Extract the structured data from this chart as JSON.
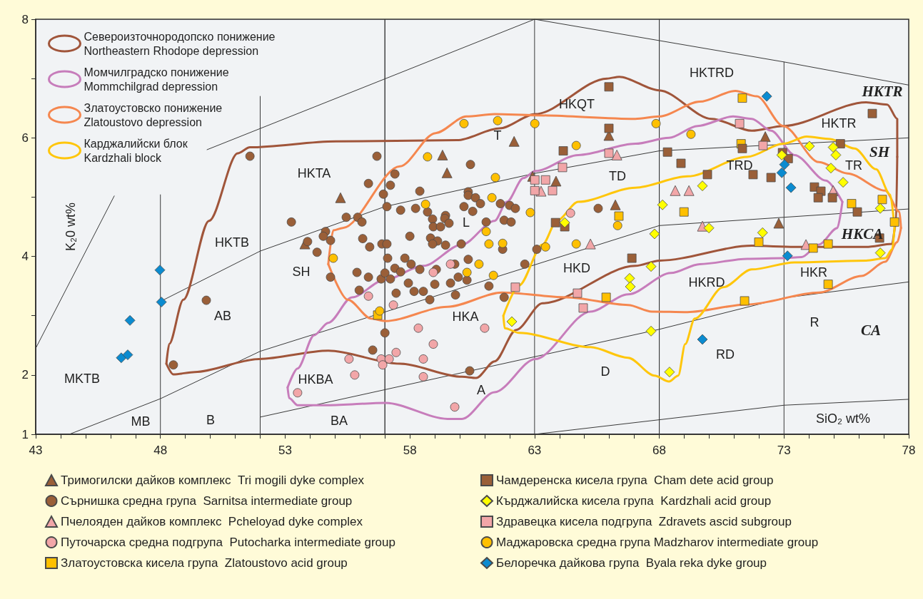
{
  "chart_data": {
    "type": "scatter",
    "xlabel": "SiO₂ wt%",
    "ylabel": "K₂0 wt%",
    "xlim": [
      43,
      78
    ],
    "xticks": [
      43,
      {
        "value": 44,
        "label": null
      },
      {
        "value": 45,
        "label": null
      },
      {
        "value": 46,
        "label": null
      },
      {
        "value": 47,
        "label": null
      },
      48,
      {
        "value": 49,
        "label": null
      },
      {
        "value": 50,
        "label": null
      },
      {
        "value": 51,
        "label": null
      },
      {
        "value": 52,
        "label": null
      },
      53,
      {
        "value": 54,
        "label": null
      },
      {
        "value": 55,
        "label": null
      },
      {
        "value": 56,
        "label": null
      },
      {
        "value": 57,
        "label": null
      },
      58,
      {
        "value": 59,
        "label": null
      },
      {
        "value": 60,
        "label": null
      },
      {
        "value": 61,
        "label": null
      },
      {
        "value": 62,
        "label": null
      },
      63,
      {
        "value": 64,
        "label": null
      },
      {
        "value": 65,
        "label": null
      },
      {
        "value": 66,
        "label": null
      },
      {
        "value": 67,
        "label": null
      },
      68,
      {
        "value": 69,
        "label": null
      },
      {
        "value": 70,
        "label": null
      },
      {
        "value": 71,
        "label": null
      },
      {
        "value": 72,
        "label": null
      },
      73,
      {
        "value": 74,
        "label": null
      },
      {
        "value": 75,
        "label": null
      },
      {
        "value": 76,
        "label": null
      },
      {
        "value": 77,
        "label": null
      },
      78
    ],
    "ylim": [
      1,
      8
    ],
    "yticks": [
      1,
      2,
      {
        "value": 3,
        "label": null
      },
      4,
      {
        "value": 5,
        "label": null
      },
      6,
      {
        "value": 7,
        "label": null
      },
      8
    ],
    "grid": false,
    "legend": "bottom",
    "annotations": [
      "HKTA",
      "T",
      "HKQT",
      "HKTRD",
      "HKTR",
      "HKTR",
      "SH",
      "TR",
      "TRD",
      "TD",
      "HKTB",
      "SH",
      "L",
      "HKCA",
      "HKD",
      "HKRD",
      "HKR",
      "AB",
      "HKA",
      "MKTB",
      "HKBA",
      "A",
      "D",
      "RD",
      "R",
      "CA",
      "MB",
      "B",
      "BA"
    ],
    "series": [
      {
        "type": "line",
        "color": "#3a3a3a",
        "marker": "none",
        "line_style": "solid",
        "x": [
          43,
          46.15
        ],
        "values": [
          2.45,
          5.02
        ]
      },
      {
        "type": "line",
        "color": "#3a3a3a",
        "marker": "none",
        "line_style": "solid",
        "x": [
          49.87,
          63,
          63,
          73,
          78
        ],
        "values": [
          5.8,
          8,
          1,
          1.49,
          1.59
        ]
      },
      {
        "type": "line",
        "color": "#3a3a3a",
        "marker": "none",
        "line_style": "solid",
        "x": [
          63,
          73,
          73
        ],
        "values": [
          8,
          7.28,
          1
        ]
      },
      {
        "type": "line",
        "color": "#3a3a3a",
        "marker": "none",
        "line_style": "solid",
        "x": [
          73,
          78
        ],
        "values": [
          7.28,
          6.89
        ]
      },
      {
        "type": "line",
        "color": "#3a3a3a",
        "marker": "none",
        "line_style": "solid",
        "x": [
          48,
          52,
          57,
          57,
          57,
          57,
          63,
          68,
          78
        ],
        "values": [
          3.24,
          4.09,
          4.84,
          8,
          1,
          4.84,
          5.4,
          5.78,
          6.0
        ]
      },
      {
        "type": "line",
        "color": "#3a3a3a",
        "marker": "none",
        "line_style": "solid",
        "x": [
          44.35,
          48,
          52,
          68,
          68,
          68,
          68,
          78
        ],
        "values": [
          1,
          1.6,
          2.4,
          4.52,
          8,
          1,
          4.52,
          4.8
        ]
      },
      {
        "type": "line",
        "color": "#3a3a3a",
        "marker": "none",
        "line_style": "solid",
        "x": [
          52,
          52,
          52,
          68,
          73,
          78
        ],
        "values": [
          6.7,
          1,
          1.29,
          2.77,
          3.3,
          3.57
        ]
      },
      {
        "type": "line",
        "color": "#3a3a3a",
        "marker": "none",
        "line_style": "solid",
        "x": [
          48,
          48
        ],
        "values": [
          1,
          5.04
        ]
      },
      {
        "type": "line",
        "name": "Североизточнородопско понижение\nNortheastern Rhodope depression",
        "color": "#a0553a",
        "marker": "none",
        "line_style": "solid",
        "x": [
          48.24,
          48.35,
          48.92,
          49.95,
          51.1,
          51.59,
          55.02,
          59.89,
          61.6,
          63.03,
          65.9,
          66.4,
          67.99,
          70.1,
          71.71,
          72.97,
          76.29,
          77.14,
          77.54,
          77.54
        ],
        "values": [
          2.19,
          2.52,
          3.27,
          4.6,
          5.74,
          5.84,
          5.94,
          5.96,
          6.16,
          6.4,
          7.0,
          7.03,
          6.8,
          6.32,
          6.12,
          6.2,
          6.6,
          6.56,
          6.32,
          5.68
        ]
      },
      {
        "type": "line",
        "color": "#a0553a",
        "marker": "none",
        "line_style": "solid",
        "x": [
          48.24,
          48.52,
          49.38,
          51.96,
          54.73,
          57.6,
          60.09,
          60.66,
          61.4,
          62.26,
          63.32,
          67.04,
          68.01,
          71.71,
          73.42,
          76.29,
          77.33,
          77.49,
          77.54
        ],
        "values": [
          2.19,
          2.01,
          2.05,
          2.27,
          2.41,
          2.19,
          1.97,
          1.95,
          2.23,
          2.76,
          3.21,
          3.84,
          3.93,
          4.18,
          4.16,
          4.16,
          4.21,
          4.56,
          5.68
        ]
      },
      {
        "type": "line",
        "name": "Момчилградско понижение\nMommchilgrad depression",
        "color": "#c77dbb",
        "marker": "none",
        "line_style": "solid",
        "x": [
          53.1,
          53.5,
          54.16,
          54.73,
          55.68,
          56.97,
          58.54,
          60.09,
          61.4,
          61.89,
          62.55,
          63.03,
          64.75,
          67.04,
          68.39,
          69.53,
          70.96,
          71.71,
          72.48,
          73.42,
          74.68,
          75.34
        ],
        "values": [
          1.79,
          2.11,
          2.67,
          2.88,
          3.31,
          3.6,
          3.84,
          4.2,
          4.6,
          4.92,
          5.32,
          5.44,
          5.71,
          5.9,
          6.0,
          6.2,
          6.36,
          6.32,
          6.12,
          5.71,
          5.28,
          4.92
        ]
      },
      {
        "type": "line",
        "color": "#c77dbb",
        "marker": "none",
        "line_style": "solid",
        "x": [
          53.1,
          53.16,
          53.5,
          54.73,
          57.02,
          59.51,
          60.09,
          61.4,
          63.03,
          65.24,
          66.75,
          68.47,
          69.62,
          71.53,
          72.97,
          73.71,
          74.4,
          75.14,
          75.34
        ],
        "values": [
          1.79,
          1.61,
          1.49,
          1.49,
          1.53,
          1.26,
          1.26,
          1.71,
          2.27,
          3.07,
          3.36,
          3.72,
          3.87,
          3.96,
          3.97,
          3.99,
          4.2,
          4.48,
          4.92
        ]
      },
      {
        "type": "line",
        "name": "Златоустовско понижение\nZlatoustovo depression",
        "color": "#f5874f",
        "marker": "none",
        "line_style": "solid",
        "x": [
          54.73,
          54.93,
          55.31,
          57.6,
          59.03,
          60.26,
          61.4,
          63.03,
          67.04,
          67.99,
          69.62,
          71.05,
          71.91,
          72.97,
          74.4,
          75.54,
          77.06,
          77.63,
          77.69
        ],
        "values": [
          3.87,
          4.44,
          4.48,
          5.52,
          6.08,
          6.36,
          6.4,
          6.38,
          6.32,
          6.36,
          6.61,
          6.79,
          6.7,
          6.2,
          5.59,
          5.4,
          5.11,
          4.75,
          4.48
        ]
      },
      {
        "type": "line",
        "color": "#f5874f",
        "marker": "none",
        "line_style": "solid",
        "x": [
          54.73,
          55.51,
          56.45,
          57.02,
          59.51,
          61.69,
          64.27,
          66.75,
          67.7,
          69.13,
          71.53,
          74.4,
          76.11,
          77.06,
          77.54,
          77.69
        ],
        "values": [
          3.87,
          3.27,
          2.95,
          2.91,
          3.15,
          3.39,
          3.31,
          3.18,
          3.07,
          3.06,
          3.19,
          3.39,
          3.67,
          3.91,
          4.24,
          4.48
        ]
      },
      {
        "type": "line",
        "name": "Карджалийски блок\nKardzhali block",
        "color": "#ffc60b",
        "marker": "none",
        "line_style": "solid",
        "x": [
          61.75,
          62.38,
          63.32,
          63.89,
          64.75,
          67.04,
          69.13,
          71.53,
          72.97,
          73.91,
          74.85,
          75.83,
          76.69,
          77.26,
          77.43
        ],
        "values": [
          3.0,
          3.51,
          4.2,
          4.6,
          4.92,
          5.16,
          5.35,
          5.68,
          5.9,
          6.02,
          5.98,
          5.82,
          5.47,
          5.04,
          4.48
        ]
      },
      {
        "type": "line",
        "color": "#ffc60b",
        "marker": "none",
        "line_style": "solid",
        "x": [
          61.75,
          61.8,
          62.38,
          65.24,
          66.75,
          67.81,
          68.39,
          68.76,
          69.04,
          69.42,
          70.56,
          71.71,
          73.42,
          76.29,
          77.06,
          77.34,
          77.43
        ],
        "values": [
          3.0,
          2.79,
          2.71,
          2.47,
          2.29,
          1.99,
          1.89,
          1.99,
          2.52,
          2.95,
          3.48,
          3.78,
          3.9,
          3.93,
          3.97,
          4.12,
          4.48
        ]
      },
      {
        "name": "Тримогилски дайков комплекс  Tri mogili dyke complex",
        "color": "#9a5f38",
        "marker": "triangle",
        "x": [
          53.79,
          55.22,
          59.31,
          59.49,
          62.18,
          62.92,
          63.86,
          65.98,
          66.24,
          72.25,
          72.79
        ],
        "values": [
          4.21,
          4.99,
          5.71,
          5.41,
          5.94,
          5.35,
          5.27,
          6.04,
          4.87,
          6.02,
          4.56
        ]
      },
      {
        "name": "Сърнишка средна група  Sarnitsa intermediate group",
        "color": "#9a5f38",
        "marker": "circle",
        "x": [
          51.59,
          53.25,
          56.68,
          60.43,
          57.4,
          57.22,
          56.34,
          56.94,
          58.4,
          57.08,
          57.63,
          58.23,
          58.71,
          58.91,
          59.43,
          59.4,
          59.57,
          55.45,
          55.91,
          56.08,
          60.34,
          60.34,
          60.63,
          60.83,
          60.17,
          60.52,
          61.63,
          62.0,
          62.23,
          61.06,
          61.78,
          62.06,
          65.55,
          58.94,
          59.23,
          56.11,
          56.39,
          58.0,
          58.83,
          59.11,
          58.91,
          59.43,
          60.06,
          56.88,
          57.08,
          61.72,
          63.09,
          57.11,
          57.8,
          58.05,
          59.8,
          60.34,
          62.61,
          55.88,
          56.34,
          56.85,
          57.0,
          57.22,
          57.4,
          57.63,
          58.4,
          59.06,
          59.94,
          60.29,
          57.94,
          59.0,
          59.63,
          61.17,
          55.97,
          57.45,
          58.17,
          58.54,
          59.83,
          58.8,
          61.78,
          57.0,
          56.51,
          60.4,
          54.82,
          54.62,
          54.53,
          53.9,
          54.28,
          54.82,
          49.84,
          48.52
        ],
        "values": [
          5.69,
          4.58,
          5.69,
          5.55,
          5.39,
          5.2,
          5.23,
          5.05,
          5.1,
          4.84,
          4.78,
          4.81,
          4.75,
          4.63,
          4.69,
          4.64,
          4.56,
          4.66,
          4.66,
          4.58,
          5.09,
          5.03,
          4.99,
          4.89,
          4.84,
          4.76,
          4.89,
          4.86,
          4.81,
          4.58,
          4.61,
          4.58,
          4.81,
          4.5,
          4.5,
          4.3,
          4.16,
          4.34,
          4.31,
          4.26,
          4.21,
          4.19,
          4.21,
          4.21,
          4.21,
          4.12,
          4.12,
          3.97,
          3.97,
          3.87,
          3.87,
          3.95,
          3.87,
          3.73,
          3.65,
          3.62,
          3.72,
          3.62,
          3.8,
          3.74,
          3.78,
          3.78,
          3.65,
          3.6,
          3.55,
          3.53,
          3.55,
          3.5,
          3.43,
          3.38,
          3.41,
          3.41,
          3.35,
          3.27,
          3.31,
          2.71,
          2.42,
          2.07,
          4.27,
          4.42,
          4.34,
          4.25,
          4.07,
          3.65,
          3.26,
          2.17
        ]
      },
      {
        "name": "Пчелояден дайков комплекс  Pcheloyad dyke complex",
        "color": "#f2a6a8",
        "marker": "triangle",
        "x": [
          63.26,
          66.3,
          68.64,
          69.19,
          69.73,
          65.24,
          73.88,
          74.97
        ],
        "values": [
          5.1,
          5.71,
          5.11,
          5.11,
          4.51,
          4.21,
          4.2,
          5.11
        ]
      },
      {
        "name": "Путочарска средна подгрупа  Putocharka intermediate group",
        "color": "#f2a6a8",
        "marker": "circle",
        "x": [
          64.44,
          59.63,
          58.94,
          56.34,
          57.34,
          58.34,
          61.0,
          58.94,
          55.56,
          56.85,
          57.17,
          57.45,
          58.54,
          56.91,
          55.79,
          58.54,
          59.8,
          53.5
        ],
        "values": [
          4.73,
          3.87,
          3.73,
          3.33,
          3.18,
          2.79,
          2.79,
          2.52,
          2.27,
          2.27,
          2.27,
          2.38,
          2.27,
          2.17,
          2.0,
          1.97,
          1.46,
          1.7
        ]
      },
      {
        "name": "Златоустовска кисела група  Zlatoustovo acid group",
        "color": "#ffc000",
        "marker": "square",
        "x": [
          56.71,
          65.87,
          66.38,
          68.99,
          71.33,
          71.28,
          71.99,
          71.42,
          74.17,
          74.77,
          74.77,
          75.71,
          76.94,
          77.43
        ],
        "values": [
          3.01,
          3.31,
          4.68,
          4.75,
          6.67,
          5.9,
          4.24,
          3.25,
          4.14,
          4.21,
          3.53,
          4.89,
          4.96,
          4.58
        ]
      },
      {
        "name": "Чамдеренска кисела група  Cham dete acid group",
        "color": "#9a5f38",
        "marker": "square",
        "x": [
          63.84,
          64.21,
          64.15,
          65.98,
          65.98,
          66.9,
          68.33,
          68.87,
          69.93,
          71.33,
          71.76,
          72.48,
          72.94,
          73.17,
          74.22,
          74.48,
          74.37,
          74.94,
          75.26,
          75.94,
          76.54,
          76.83
        ],
        "values": [
          4.57,
          4.5,
          5.78,
          6.86,
          6.16,
          3.97,
          5.76,
          5.57,
          5.38,
          5.82,
          5.38,
          5.33,
          5.75,
          5.65,
          5.17,
          5.1,
          4.99,
          4.99,
          5.9,
          4.75,
          6.41,
          4.31
        ]
      },
      {
        "name": "Кърджалийска кисела група  Kardzhali acid group",
        "color": "#ffff00",
        "marker": "diamond",
        "x": [
          62.09,
          64.21,
          66.81,
          66.84,
          67.67,
          67.81,
          67.67,
          68.41,
          68.13,
          69.73,
          69.99,
          72.14,
          72.91,
          74.02,
          74.88,
          74.97,
          75.08,
          75.37,
          76.86,
          76.86
        ],
        "values": [
          2.9,
          4.57,
          3.63,
          3.49,
          3.83,
          4.38,
          2.74,
          2.05,
          4.87,
          5.19,
          4.48,
          4.4,
          5.71,
          5.86,
          5.49,
          5.84,
          5.71,
          5.25,
          4.81,
          4.06
        ]
      },
      {
        "name": "Здравецка кисела подгрупа  Zdravets ascid subgroup",
        "color": "#f2a6a8",
        "marker": "square",
        "x": [
          62.23,
          63.01,
          63.01,
          63.44,
          63.72,
          64.12,
          64.72,
          64.95,
          65.98,
          71.22,
          72.16
        ],
        "values": [
          3.48,
          5.29,
          5.11,
          5.29,
          5.11,
          5.5,
          3.38,
          3.13,
          5.74,
          6.24,
          5.87
        ]
      },
      {
        "name": "Маджаровска средна група Madzharov intermediate group",
        "color": "#ffc000",
        "marker": "circle",
        "x": [
          54.93,
          56.79,
          58.63,
          58.71,
          60.17,
          60.29,
          60.77,
          61.06,
          61.17,
          61.29,
          61.35,
          61.43,
          61.52,
          61.72,
          62.83,
          63.01,
          63.44,
          64.67,
          64.67,
          66.33,
          67.87,
          69.27
        ],
        "values": [
          3.97,
          3.08,
          4.88,
          5.68,
          6.24,
          3.73,
          3.87,
          4.42,
          4.21,
          4.99,
          3.68,
          5.33,
          6.29,
          4.22,
          4.74,
          6.24,
          4.16,
          5.87,
          4.21,
          4.52,
          6.24,
          6.06
        ]
      },
      {
        "name": "Белоречка дайкова група  Byala reka dyke group",
        "color": "#0b8bd0",
        "marker": "diamond",
        "x": [
          46.43,
          46.69,
          46.78,
          47.98,
          48.04,
          69.73,
          72.31,
          72.91,
          73.02,
          73.14,
          73.28
        ],
        "values": [
          2.29,
          2.34,
          2.92,
          3.77,
          3.23,
          2.6,
          6.7,
          5.41,
          5.55,
          4.01,
          5.16
        ]
      }
    ]
  }
}
